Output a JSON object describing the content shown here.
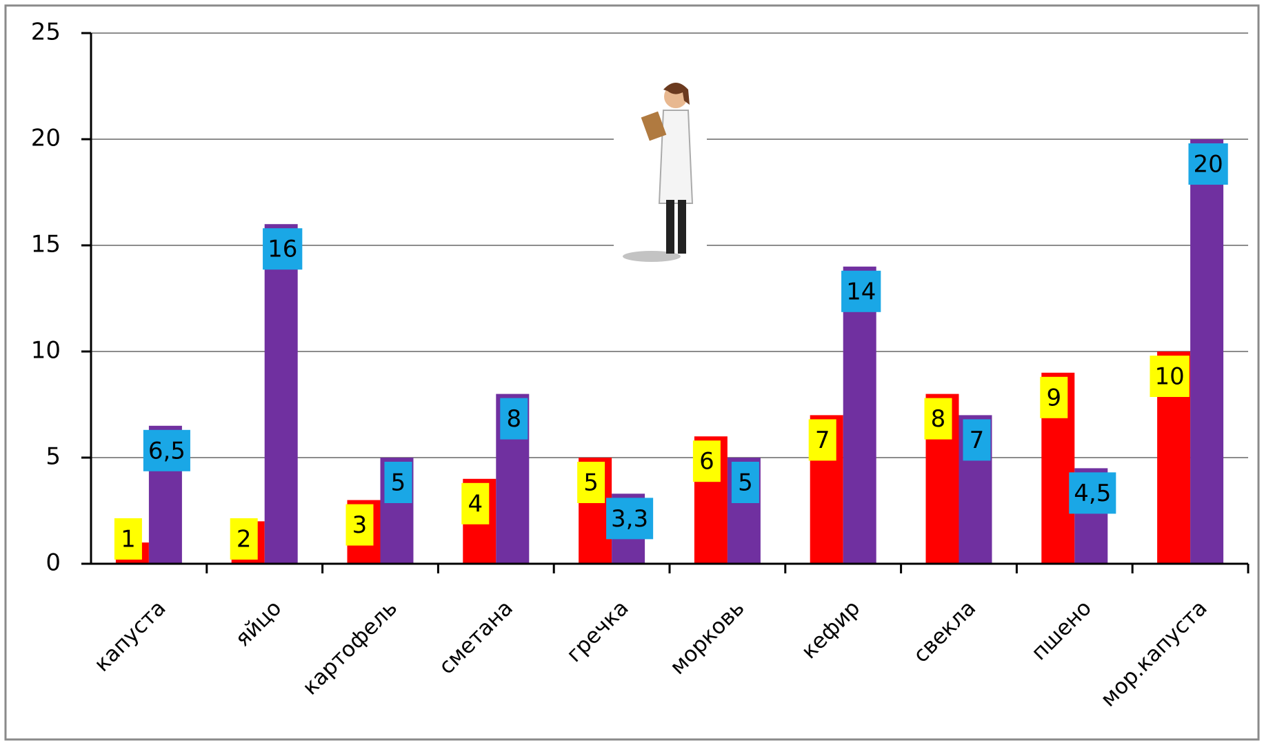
{
  "chart_data": {
    "type": "bar",
    "categories": [
      "капуста",
      "яйцо",
      "картофель",
      "сметана",
      "гречка",
      "морковь",
      "кефир",
      "свекла",
      "пшено",
      "мор.капуста"
    ],
    "series": [
      {
        "color": "#ff0000",
        "label_color": "#ffff00",
        "values": [
          1,
          2,
          3,
          4,
          5,
          6,
          7,
          8,
          9,
          10
        ]
      },
      {
        "color": "#7030a0",
        "label_color": "#1aa7e6",
        "values": [
          6.5,
          16,
          5,
          8,
          3.3,
          5,
          14,
          7,
          4.5,
          20
        ],
        "value_labels": [
          "6,5",
          "16",
          "5",
          "8",
          "3,3",
          "5",
          "14",
          "7",
          "4,5",
          "20"
        ]
      }
    ],
    "ylim": [
      0,
      25
    ],
    "yticks": [
      0,
      5,
      10,
      15,
      20,
      25
    ],
    "grid": true
  }
}
